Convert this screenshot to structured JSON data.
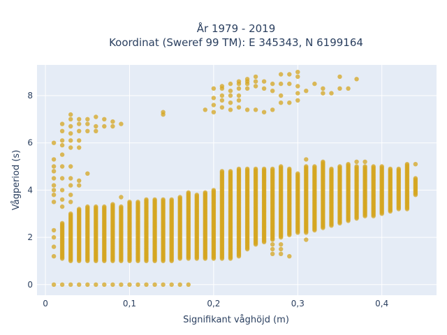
{
  "chart_data": {
    "type": "scatter",
    "title": "År 1979 - 2019",
    "subtitle": "Koordinat (Sweref 99 TM): E 345343, N 6199164",
    "xlabel": "Signifikant våghöjd (m)",
    "ylabel": "Vågperiod (s)",
    "xlim": [
      -0.01,
      0.465
    ],
    "ylim": [
      -0.45,
      9.3
    ],
    "x_ticks": [
      0,
      0.1,
      0.2,
      0.3,
      0.4
    ],
    "x_tick_labels": [
      "0",
      "0,1",
      "0,2",
      "0,3",
      "0,4"
    ],
    "y_ticks": [
      0,
      2,
      4,
      6,
      8
    ],
    "y_tick_labels": [
      "0",
      "2",
      "4",
      "6",
      "8"
    ],
    "grid": true,
    "colors": {
      "marker": "#d4a520",
      "plot_bg": "#e5ecf6",
      "grid": "#ffffff"
    },
    "series": [
      {
        "columns": [
          {
            "x": 0.01,
            "lo": 0.0,
            "hi": 0.0,
            "extra": [
              1.2,
              1.6,
              2.0,
              2.3,
              3.5,
              3.8,
              4.0,
              4.2,
              4.5,
              4.8,
              5.0,
              5.3,
              6.0
            ]
          },
          {
            "x": 0.02,
            "lo": 1.1,
            "hi": 2.6,
            "extra": [
              0.0,
              3.3,
              3.6,
              4.0,
              4.5,
              5.0,
              5.5,
              5.9,
              6.1,
              6.5,
              6.8
            ]
          },
          {
            "x": 0.03,
            "lo": 1.0,
            "hi": 3.0,
            "extra": [
              0.0,
              3.5,
              3.8,
              4.2,
              4.5,
              5.0,
              5.8,
              6.1,
              6.4,
              6.7,
              7.0,
              7.2
            ]
          },
          {
            "x": 0.04,
            "lo": 1.0,
            "hi": 3.2,
            "extra": [
              0.0,
              4.2,
              4.4,
              5.8,
              6.1,
              6.5,
              6.8,
              7.0
            ]
          },
          {
            "x": 0.05,
            "lo": 1.0,
            "hi": 3.3,
            "extra": [
              0.0,
              4.7,
              6.5,
              6.8,
              7.0
            ]
          },
          {
            "x": 0.06,
            "lo": 1.0,
            "hi": 3.3,
            "extra": [
              0.0,
              6.5,
              6.7,
              7.1
            ]
          },
          {
            "x": 0.07,
            "lo": 1.0,
            "hi": 3.3,
            "extra": [
              0.0,
              6.7,
              7.0
            ]
          },
          {
            "x": 0.08,
            "lo": 1.0,
            "hi": 3.4,
            "extra": [
              0.0,
              6.7,
              6.9
            ]
          },
          {
            "x": 0.09,
            "lo": 1.0,
            "hi": 3.3,
            "extra": [
              0.0,
              3.7,
              6.8
            ]
          },
          {
            "x": 0.1,
            "lo": 1.0,
            "hi": 3.5,
            "extra": [
              0.0
            ]
          },
          {
            "x": 0.11,
            "lo": 1.0,
            "hi": 3.5,
            "extra": [
              0.0
            ]
          },
          {
            "x": 0.12,
            "lo": 1.0,
            "hi": 3.6,
            "extra": [
              0.0
            ]
          },
          {
            "x": 0.13,
            "lo": 1.0,
            "hi": 3.6,
            "extra": [
              0.0
            ]
          },
          {
            "x": 0.14,
            "lo": 1.0,
            "hi": 3.6,
            "extra": [
              0.0,
              7.2,
              7.3
            ]
          },
          {
            "x": 0.15,
            "lo": 1.0,
            "hi": 3.6,
            "extra": [
              0.0
            ]
          },
          {
            "x": 0.16,
            "lo": 1.1,
            "hi": 3.7,
            "extra": [
              0.0
            ]
          },
          {
            "x": 0.17,
            "lo": 1.1,
            "hi": 3.9,
            "extra": [
              0.0
            ]
          },
          {
            "x": 0.18,
            "lo": 1.1,
            "hi": 3.8,
            "extra": []
          },
          {
            "x": 0.19,
            "lo": 1.1,
            "hi": 3.9,
            "extra": [
              7.4
            ]
          },
          {
            "x": 0.2,
            "lo": 1.1,
            "hi": 4.0,
            "extra": [
              7.3,
              7.6,
              7.9,
              8.3
            ]
          },
          {
            "x": 0.21,
            "lo": 1.1,
            "hi": 4.8,
            "extra": [
              7.5,
              7.8,
              8.0,
              8.3,
              8.4
            ]
          },
          {
            "x": 0.22,
            "lo": 1.1,
            "hi": 4.8,
            "extra": [
              7.4,
              7.7,
              8.0,
              8.2,
              8.5
            ]
          },
          {
            "x": 0.23,
            "lo": 1.2,
            "hi": 4.9,
            "extra": [
              7.5,
              7.8,
              8.0,
              8.3,
              8.5,
              8.6
            ]
          },
          {
            "x": 0.24,
            "lo": 1.5,
            "hi": 4.9,
            "extra": [
              7.4,
              8.3,
              8.5,
              8.6,
              8.7
            ]
          },
          {
            "x": 0.25,
            "lo": 1.7,
            "hi": 4.9,
            "extra": [
              7.4,
              8.4,
              8.6,
              8.8
            ]
          },
          {
            "x": 0.26,
            "lo": 1.8,
            "hi": 4.9,
            "extra": [
              7.3,
              8.3,
              8.6
            ]
          },
          {
            "x": 0.27,
            "lo": 1.9,
            "hi": 4.9,
            "extra": [
              1.3,
              1.5,
              1.7,
              7.4,
              8.2,
              8.5
            ]
          },
          {
            "x": 0.28,
            "lo": 2.0,
            "hi": 5.0,
            "extra": [
              1.3,
              1.5,
              1.7,
              7.7,
              8.0,
              8.5,
              8.9
            ]
          },
          {
            "x": 0.29,
            "lo": 2.1,
            "hi": 4.9,
            "extra": [
              1.2,
              7.7,
              8.5,
              8.9
            ]
          },
          {
            "x": 0.3,
            "lo": 2.2,
            "hi": 4.7,
            "extra": [
              7.8,
              8.1,
              8.4,
              8.8,
              9.0
            ]
          },
          {
            "x": 0.31,
            "lo": 2.2,
            "hi": 5.0,
            "extra": [
              1.9,
              5.3,
              8.2
            ]
          },
          {
            "x": 0.32,
            "lo": 2.3,
            "hi": 5.0,
            "extra": [
              8.5
            ]
          },
          {
            "x": 0.33,
            "lo": 2.4,
            "hi": 5.2,
            "extra": [
              8.1,
              8.3
            ]
          },
          {
            "x": 0.34,
            "lo": 2.5,
            "hi": 4.9,
            "extra": [
              8.1
            ]
          },
          {
            "x": 0.35,
            "lo": 2.6,
            "hi": 5.0,
            "extra": [
              8.3,
              8.8
            ]
          },
          {
            "x": 0.36,
            "lo": 2.7,
            "hi": 5.1,
            "extra": [
              8.3
            ]
          },
          {
            "x": 0.37,
            "lo": 2.8,
            "hi": 5.0,
            "extra": [
              5.2,
              8.7
            ]
          },
          {
            "x": 0.38,
            "lo": 2.9,
            "hi": 5.0,
            "extra": [
              5.2
            ]
          },
          {
            "x": 0.39,
            "lo": 2.9,
            "hi": 5.0,
            "extra": []
          },
          {
            "x": 0.4,
            "lo": 3.0,
            "hi": 5.0,
            "extra": []
          },
          {
            "x": 0.41,
            "lo": 3.1,
            "hi": 4.9,
            "extra": []
          },
          {
            "x": 0.42,
            "lo": 3.2,
            "hi": 4.9,
            "extra": []
          },
          {
            "x": 0.43,
            "lo": 3.2,
            "hi": 5.1,
            "extra": []
          },
          {
            "x": 0.44,
            "lo": 3.8,
            "hi": 4.5,
            "extra": [
              5.1
            ]
          }
        ]
      }
    ]
  }
}
